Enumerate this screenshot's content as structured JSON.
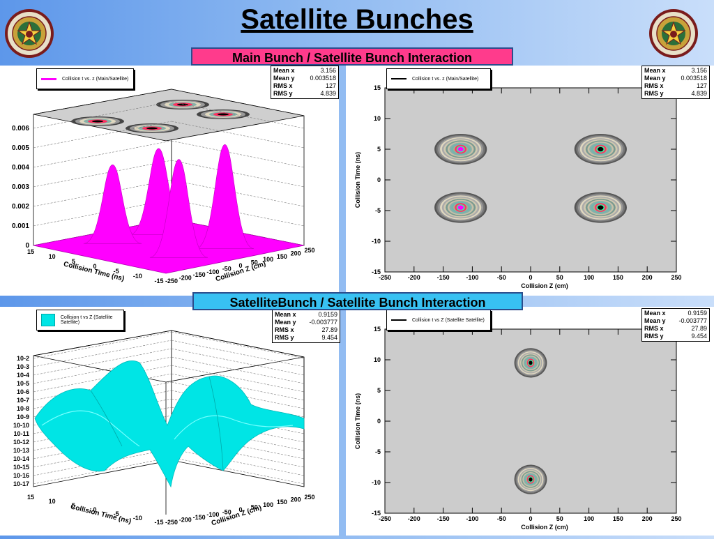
{
  "slide": {
    "title": "Satellite Bunches",
    "banner_top": "Main Bunch / Satellite Bunch Interaction",
    "banner_bottom": "SatelliteBunch / Satellite Bunch Interaction",
    "seal_icon": "texas-am-university-seal-icon"
  },
  "colors": {
    "magenta": "#ff00ff",
    "cyan": "#00e5e5",
    "contour_bg": "#cccccc"
  },
  "stats_top": {
    "rows": [
      {
        "k": "Mean x",
        "v": "3.156"
      },
      {
        "k": "Mean y",
        "v": "0.003518"
      },
      {
        "k": "RMS x",
        "v": "127"
      },
      {
        "k": "RMS y",
        "v": "4.839"
      }
    ]
  },
  "stats_bottom": {
    "rows": [
      {
        "k": "Mean x",
        "v": "0.9159"
      },
      {
        "k": "Mean y",
        "v": "-0.003777"
      },
      {
        "k": "RMS x",
        "v": "27.89"
      },
      {
        "k": "RMS y",
        "v": "9.454"
      }
    ]
  },
  "chart_data": [
    {
      "type": "surface",
      "legend": "Collision t vs. z (Main/Satellite)",
      "xlabel": "Collision Z (cm)",
      "ylabel": "Collision Time (ns)",
      "z_ticks": [
        "0",
        "0.001",
        "0.002",
        "0.003",
        "0.004",
        "0.005",
        "0.006"
      ],
      "x_ticks": [
        "-250",
        "-200",
        "-150",
        "-100",
        "-50",
        "0",
        "50",
        "100",
        "150",
        "200",
        "250"
      ],
      "y_ticks": [
        "15",
        "10",
        "5",
        "0",
        "-5",
        "-10",
        "-15"
      ],
      "peaks": [
        {
          "z": -125,
          "t": 5,
          "height": 0.0058
        },
        {
          "z": -125,
          "t": -5,
          "height": 0.0053
        },
        {
          "z": 125,
          "t": 5,
          "height": 0.007
        },
        {
          "z": 125,
          "t": -5,
          "height": 0.0066
        }
      ]
    },
    {
      "type": "heatmap",
      "legend": "Collision t vs. z (Main/Satellite)",
      "xlabel": "Collision Z (cm)",
      "ylabel": "Collision Time (ns)",
      "xlim": [
        -250,
        250
      ],
      "ylim": [
        -15,
        15
      ],
      "x_ticks": [
        -250,
        -200,
        -150,
        -100,
        -50,
        0,
        50,
        100,
        150,
        200,
        250
      ],
      "y_ticks": [
        -15,
        -10,
        -5,
        0,
        5,
        10,
        15
      ],
      "blobs": [
        {
          "x": -120,
          "y": 5,
          "rx": 45,
          "ry": 2.5,
          "core": "#ff00ff"
        },
        {
          "x": 120,
          "y": 5,
          "rx": 45,
          "ry": 2.5,
          "core": "#000000"
        },
        {
          "x": -120,
          "y": -4.5,
          "rx": 45,
          "ry": 2.5,
          "core": "#ff00ff"
        },
        {
          "x": 120,
          "y": -4.5,
          "rx": 45,
          "ry": 2.5,
          "core": "#000000"
        }
      ]
    },
    {
      "type": "surface",
      "legend": "Collision t vs Z (Satellite Satellite)",
      "xlabel": "Collision Z (cm)",
      "ylabel": "Collision Time (ns)",
      "z_ticks": [
        "10-2",
        "10-3",
        "10-4",
        "10-5",
        "10-6",
        "10-7",
        "10-8",
        "10-9",
        "10-10",
        "10-11",
        "10-12",
        "10-13",
        "10-14",
        "10-15",
        "10-16",
        "10-17"
      ],
      "x_ticks": [
        "-250",
        "-200",
        "-150",
        "-100",
        "-50",
        "0",
        "50",
        "100",
        "150",
        "200",
        "250"
      ],
      "y_ticks": [
        "15",
        "10",
        "5",
        "0",
        "-5",
        "-10",
        "-15"
      ]
    },
    {
      "type": "heatmap",
      "legend": "Collision t vs Z (Satellite Satellite)",
      "xlabel": "Collision Z (cm)",
      "ylabel": "Collision Time (ns)",
      "xlim": [
        -250,
        250
      ],
      "ylim": [
        -15,
        15
      ],
      "x_ticks": [
        -250,
        -200,
        -150,
        -100,
        -50,
        0,
        50,
        100,
        150,
        200,
        250
      ],
      "y_ticks": [
        -15,
        -10,
        -5,
        0,
        5,
        10,
        15
      ],
      "blobs": [
        {
          "x": 0,
          "y": 9.5,
          "rx": 28,
          "ry": 2.4,
          "core": "#000000"
        },
        {
          "x": 0,
          "y": -9.5,
          "rx": 28,
          "ry": 2.4,
          "core": "#000000"
        }
      ]
    }
  ]
}
